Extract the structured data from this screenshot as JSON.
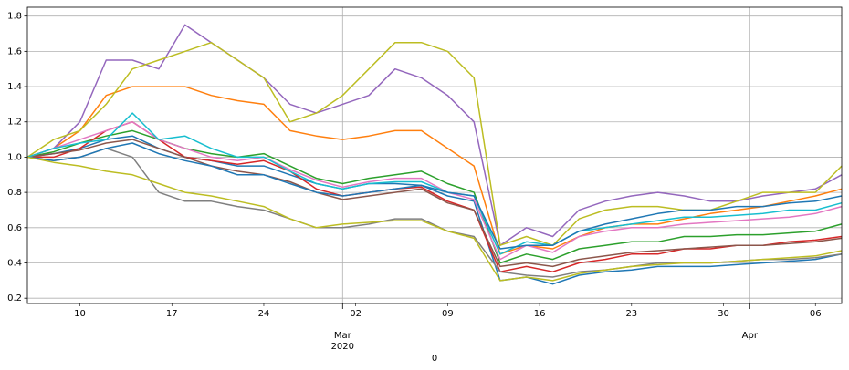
{
  "chart_data": {
    "type": "line",
    "x": [
      "2020-02-06",
      "2020-02-08",
      "2020-02-10",
      "2020-02-12",
      "2020-02-14",
      "2020-02-16",
      "2020-02-18",
      "2020-02-20",
      "2020-02-22",
      "2020-02-24",
      "2020-02-26",
      "2020-02-28",
      "2020-03-01",
      "2020-03-03",
      "2020-03-05",
      "2020-03-07",
      "2020-03-09",
      "2020-03-11",
      "2020-03-13",
      "2020-03-15",
      "2020-03-17",
      "2020-03-19",
      "2020-03-21",
      "2020-03-23",
      "2020-03-25",
      "2020-03-27",
      "2020-03-29",
      "2020-03-31",
      "2020-04-02",
      "2020-04-04",
      "2020-04-06",
      "2020-04-08"
    ],
    "xlabel": "0",
    "xlim": [
      "2020-02-06",
      "2020-04-08"
    ],
    "xticks": [
      {
        "value": "2020-02-10",
        "label": "10"
      },
      {
        "value": "2020-02-17",
        "label": "17"
      },
      {
        "value": "2020-02-24",
        "label": "24"
      },
      {
        "value": "2020-03-02",
        "label": "02"
      },
      {
        "value": "2020-03-09",
        "label": "09"
      },
      {
        "value": "2020-03-16",
        "label": "16"
      },
      {
        "value": "2020-03-23",
        "label": "23"
      },
      {
        "value": "2020-03-30",
        "label": "30"
      },
      {
        "value": "2020-04-06",
        "label": "06"
      }
    ],
    "xticks_major": [
      {
        "value": "2020-03-01",
        "label": "Mar",
        "sublabel": "2020"
      },
      {
        "value": "2020-04-01",
        "label": "Apr"
      }
    ],
    "ylim": [
      0.17,
      1.85
    ],
    "yticks": [
      0.2,
      0.4,
      0.6,
      0.8,
      {
        "value": 1,
        "label": "1.0"
      },
      1.2,
      1.4,
      1.6,
      1.8
    ],
    "grid": true,
    "series": [
      {
        "color": "#1f77b4",
        "values": [
          1.0,
          1.02,
          1.05,
          1.1,
          1.12,
          1.05,
          1.0,
          0.98,
          0.95,
          0.95,
          0.9,
          0.85,
          0.82,
          0.85,
          0.85,
          0.84,
          0.78,
          0.75,
          0.3,
          0.32,
          0.28,
          0.33,
          0.35,
          0.36,
          0.38,
          0.38,
          0.38,
          0.39,
          0.4,
          0.41,
          0.42,
          0.45
        ]
      },
      {
        "color": "#ff7f0e",
        "values": [
          1.0,
          1.05,
          1.15,
          1.35,
          1.4,
          1.4,
          1.4,
          1.35,
          1.32,
          1.3,
          1.15,
          1.12,
          1.1,
          1.12,
          1.15,
          1.15,
          1.05,
          0.95,
          0.45,
          0.5,
          0.48,
          0.55,
          0.6,
          0.62,
          0.62,
          0.65,
          0.68,
          0.7,
          0.72,
          0.75,
          0.78,
          0.82
        ]
      },
      {
        "color": "#2ca02c",
        "values": [
          1.0,
          1.03,
          1.08,
          1.12,
          1.15,
          1.1,
          1.05,
          1.02,
          1.0,
          1.02,
          0.95,
          0.88,
          0.85,
          0.88,
          0.9,
          0.92,
          0.85,
          0.8,
          0.4,
          0.45,
          0.42,
          0.48,
          0.5,
          0.52,
          0.52,
          0.55,
          0.55,
          0.56,
          0.56,
          0.57,
          0.58,
          0.62
        ]
      },
      {
        "color": "#d62728",
        "values": [
          1.0,
          1.0,
          1.05,
          1.15,
          1.2,
          1.1,
          1.0,
          0.98,
          0.96,
          0.98,
          0.92,
          0.82,
          0.78,
          0.8,
          0.82,
          0.83,
          0.75,
          0.7,
          0.35,
          0.38,
          0.35,
          0.4,
          0.42,
          0.45,
          0.45,
          0.48,
          0.48,
          0.5,
          0.5,
          0.52,
          0.53,
          0.55
        ]
      },
      {
        "color": "#9467bd",
        "values": [
          1.0,
          1.05,
          1.2,
          1.55,
          1.55,
          1.5,
          1.75,
          1.65,
          1.55,
          1.45,
          1.3,
          1.25,
          1.3,
          1.35,
          1.5,
          1.45,
          1.35,
          1.2,
          0.5,
          0.6,
          0.55,
          0.7,
          0.75,
          0.78,
          0.8,
          0.78,
          0.75,
          0.75,
          0.78,
          0.8,
          0.82,
          0.9
        ]
      },
      {
        "color": "#8c564b",
        "values": [
          1.0,
          1.02,
          1.04,
          1.08,
          1.1,
          1.05,
          1.0,
          0.95,
          0.92,
          0.9,
          0.86,
          0.8,
          0.76,
          0.78,
          0.8,
          0.82,
          0.74,
          0.7,
          0.38,
          0.4,
          0.38,
          0.42,
          0.44,
          0.46,
          0.47,
          0.48,
          0.49,
          0.5,
          0.5,
          0.51,
          0.52,
          0.54
        ]
      },
      {
        "color": "#e377c2",
        "values": [
          1.0,
          1.05,
          1.1,
          1.15,
          1.2,
          1.1,
          1.05,
          1.0,
          0.98,
          1.0,
          0.93,
          0.87,
          0.83,
          0.86,
          0.88,
          0.88,
          0.8,
          0.76,
          0.42,
          0.5,
          0.46,
          0.55,
          0.58,
          0.6,
          0.6,
          0.62,
          0.63,
          0.64,
          0.65,
          0.66,
          0.68,
          0.72
        ]
      },
      {
        "color": "#7f7f7f",
        "values": [
          1.0,
          0.98,
          1.0,
          1.05,
          1.0,
          0.8,
          0.75,
          0.75,
          0.72,
          0.7,
          0.65,
          0.6,
          0.6,
          0.62,
          0.65,
          0.65,
          0.58,
          0.55,
          0.35,
          0.33,
          0.32,
          0.35,
          0.36,
          0.38,
          0.4,
          0.4,
          0.4,
          0.41,
          0.42,
          0.42,
          0.43,
          0.45
        ]
      },
      {
        "color": "#bcbd22",
        "values": [
          1.0,
          1.1,
          1.15,
          1.3,
          1.5,
          1.55,
          1.6,
          1.65,
          1.55,
          1.45,
          1.2,
          1.25,
          1.35,
          1.5,
          1.65,
          1.65,
          1.6,
          1.45,
          0.5,
          0.55,
          0.5,
          0.65,
          0.7,
          0.72,
          0.72,
          0.7,
          0.7,
          0.75,
          0.8,
          0.8,
          0.8,
          0.95
        ]
      },
      {
        "color": "#17becf",
        "values": [
          1.0,
          1.05,
          1.08,
          1.1,
          1.25,
          1.1,
          1.12,
          1.05,
          1.0,
          1.0,
          0.92,
          0.85,
          0.82,
          0.85,
          0.86,
          0.86,
          0.8,
          0.78,
          0.45,
          0.52,
          0.5,
          0.58,
          0.6,
          0.62,
          0.64,
          0.66,
          0.66,
          0.67,
          0.68,
          0.7,
          0.7,
          0.74
        ]
      },
      {
        "color": "#1f77b4",
        "values": [
          1.0,
          0.98,
          1.0,
          1.05,
          1.08,
          1.02,
          0.98,
          0.95,
          0.9,
          0.9,
          0.85,
          0.8,
          0.78,
          0.8,
          0.82,
          0.84,
          0.8,
          0.78,
          0.48,
          0.5,
          0.5,
          0.58,
          0.62,
          0.65,
          0.68,
          0.7,
          0.7,
          0.72,
          0.72,
          0.74,
          0.75,
          0.78
        ]
      },
      {
        "color": "#bcbd22",
        "values": [
          1.0,
          0.97,
          0.95,
          0.92,
          0.9,
          0.85,
          0.8,
          0.78,
          0.75,
          0.72,
          0.65,
          0.6,
          0.62,
          0.63,
          0.64,
          0.64,
          0.58,
          0.54,
          0.3,
          0.32,
          0.3,
          0.34,
          0.36,
          0.38,
          0.39,
          0.4,
          0.4,
          0.41,
          0.42,
          0.43,
          0.44,
          0.47
        ]
      }
    ]
  }
}
